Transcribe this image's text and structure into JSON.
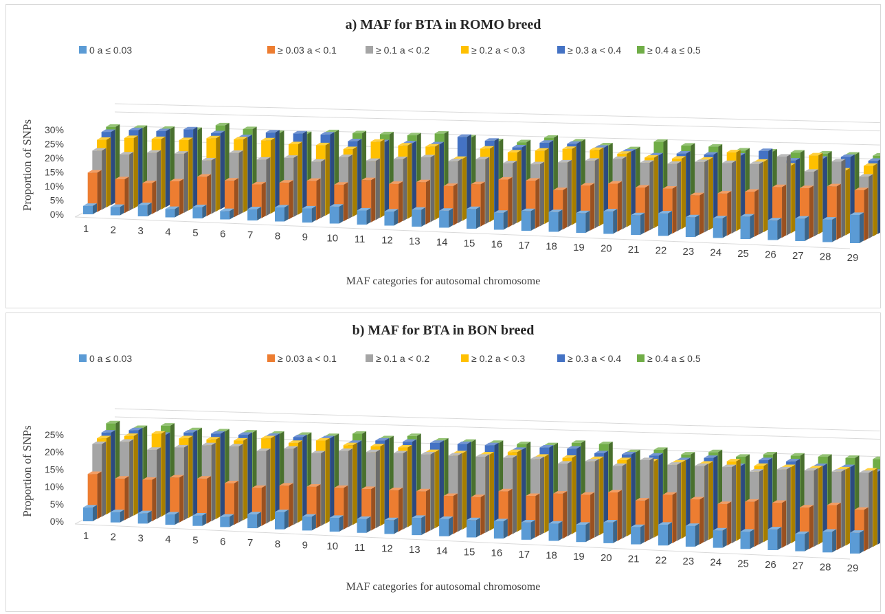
{
  "figure": {
    "legend": [
      "0 a  ≤ 0.03",
      "≥ 0.03 a < 0.1",
      "≥ 0.1 a < 0.2",
      "≥ 0.2 a < 0.3",
      "≥ 0.3 a < 0.4",
      "≥ 0.4 a ≤ 0.5"
    ],
    "colors": {
      "series": [
        "#5b9bd5",
        "#ed7d31",
        "#a5a5a5",
        "#ffc000",
        "#4472c4",
        "#70ad47"
      ],
      "border": "#d9d9d9",
      "text": "#404040"
    }
  },
  "chart_data": [
    {
      "type": "bar",
      "style": "3d-clustered-depth",
      "title": "a) MAF for BTA in ROMO breed",
      "xlabel": "MAF categories for autosomal chromosome",
      "ylabel": "Proportion of SNPs",
      "yticks": [
        "0%",
        "5%",
        "10%",
        "15%",
        "20%",
        "25%",
        "30%"
      ],
      "ylim": [
        0,
        30
      ],
      "legend_position": "top",
      "categories": [
        "1",
        "2",
        "3",
        "4",
        "5",
        "6",
        "7",
        "8",
        "9",
        "10",
        "11",
        "12",
        "13",
        "14",
        "15",
        "16",
        "17",
        "18",
        "19",
        "20",
        "21",
        "22",
        "23",
        "24",
        "25",
        "26",
        "27",
        "28",
        "29"
      ],
      "series": [
        {
          "name": "0 a  ≤ 0.03",
          "values": [
            3,
            3,
            4,
            3,
            4,
            3,
            4,
            5,
            5,
            6,
            5,
            5,
            6,
            6,
            7,
            6,
            7,
            7,
            7,
            8,
            7,
            8,
            7,
            7,
            8,
            7,
            8,
            8,
            10
          ]
        },
        {
          "name": "≥ 0.03 a < 0.1",
          "values": [
            14,
            12,
            11,
            12,
            14,
            13,
            12,
            13,
            14,
            13,
            15,
            14,
            15,
            14,
            15,
            17,
            17,
            14,
            16,
            17,
            16,
            16,
            14,
            15,
            16,
            18,
            18,
            19,
            18
          ]
        },
        {
          "name": "≥ 0.1 a < 0.2",
          "values": [
            21,
            20,
            21,
            21,
            19,
            22,
            20,
            21,
            20,
            22,
            21,
            22,
            23,
            22,
            23,
            22,
            22,
            23,
            24,
            25,
            24,
            24,
            25,
            25,
            25,
            28,
            23,
            27,
            22
          ]
        },
        {
          "name": "≥ 0.2 a < 0.3",
          "values": [
            24,
            25,
            25,
            25,
            26,
            26,
            26,
            25,
            25,
            24,
            27,
            26,
            26,
            22,
            26,
            25,
            26,
            27,
            27,
            26,
            25,
            25,
            25,
            28,
            25,
            24,
            28,
            23,
            25
          ]
        },
        {
          "name": "≥ 0.3 a < 0.4",
          "values": [
            26,
            27,
            27,
            28,
            27,
            26,
            28,
            28,
            28,
            26,
            26,
            26,
            26,
            29,
            28,
            26,
            28,
            28,
            27,
            26,
            25,
            26,
            26,
            26,
            28,
            25,
            26,
            27,
            26
          ]
        },
        {
          "name": "≥ 0.4 a ≤ 0.5",
          "values": [
            27,
            27,
            27,
            27,
            29,
            28,
            27,
            27,
            28,
            28,
            28,
            28,
            29,
            28,
            27,
            27,
            29,
            28,
            27,
            26,
            29,
            28,
            28,
            27,
            27,
            27,
            27,
            27,
            27
          ]
        }
      ]
    },
    {
      "type": "bar",
      "style": "3d-clustered-depth",
      "title": "b) MAF for BTA in BON breed",
      "xlabel": "MAF categories for autosomal chromosome",
      "ylabel": "Proportion of SNPs",
      "yticks": [
        "0%",
        "5%",
        "10%",
        "15%",
        "20%",
        "25%"
      ],
      "ylim": [
        0,
        25
      ],
      "legend_position": "top",
      "categories": [
        "1",
        "2",
        "3",
        "4",
        "5",
        "6",
        "7",
        "8",
        "9",
        "10",
        "11",
        "12",
        "13",
        "14",
        "15",
        "16",
        "17",
        "18",
        "19",
        "20",
        "21",
        "22",
        "23",
        "24",
        "25",
        "26",
        "27",
        "28",
        "29"
      ],
      "series": [
        {
          "name": "0 a  ≤ 0.03",
          "values": [
            4,
            3,
            3,
            3,
            3,
            3,
            4,
            5,
            4,
            4,
            4,
            4,
            5,
            5,
            5,
            5,
            5,
            5,
            5,
            6,
            5,
            6,
            6,
            5,
            5,
            6,
            5,
            6,
            6
          ]
        },
        {
          "name": "≥ 0.03 a < 0.1",
          "values": [
            13,
            12,
            12,
            13,
            13,
            12,
            11,
            12,
            12,
            12,
            12,
            12,
            12,
            11,
            11,
            13,
            12,
            13,
            13,
            14,
            12,
            14,
            13,
            12,
            13,
            13,
            12,
            13,
            12
          ]
        },
        {
          "name": "≥ 0.1 a < 0.2",
          "values": [
            21,
            22,
            20,
            21,
            22,
            22,
            21,
            22,
            21,
            22,
            22,
            22,
            22,
            22,
            22,
            22,
            22,
            21,
            22,
            21,
            23,
            22,
            22,
            22,
            21,
            22,
            22,
            22,
            22
          ]
        },
        {
          "name": "≥ 0.2 a < 0.3",
          "values": [
            22,
            23,
            24,
            23,
            23,
            23,
            24,
            23,
            24,
            23,
            23,
            23,
            22,
            22,
            22,
            23,
            22,
            22,
            22,
            22,
            22,
            22,
            22,
            23,
            22,
            22,
            22,
            22,
            22
          ]
        },
        {
          "name": "≥ 0.3 a < 0.4",
          "values": [
            23,
            24,
            23,
            24,
            24,
            24,
            24,
            24,
            24,
            23,
            24,
            24,
            24,
            24,
            24,
            23,
            24,
            24,
            23,
            23,
            23,
            22,
            23,
            21,
            23,
            23,
            22,
            22,
            21
          ]
        },
        {
          "name": "≥ 0.4 a ≤ 0.5",
          "values": [
            25,
            24,
            25,
            24,
            24,
            24,
            24,
            24,
            24,
            25,
            24,
            25,
            24,
            24,
            24,
            24,
            24,
            25,
            25,
            23,
            24,
            23,
            24,
            23,
            24,
            24,
            24,
            24,
            24
          ]
        }
      ]
    }
  ]
}
